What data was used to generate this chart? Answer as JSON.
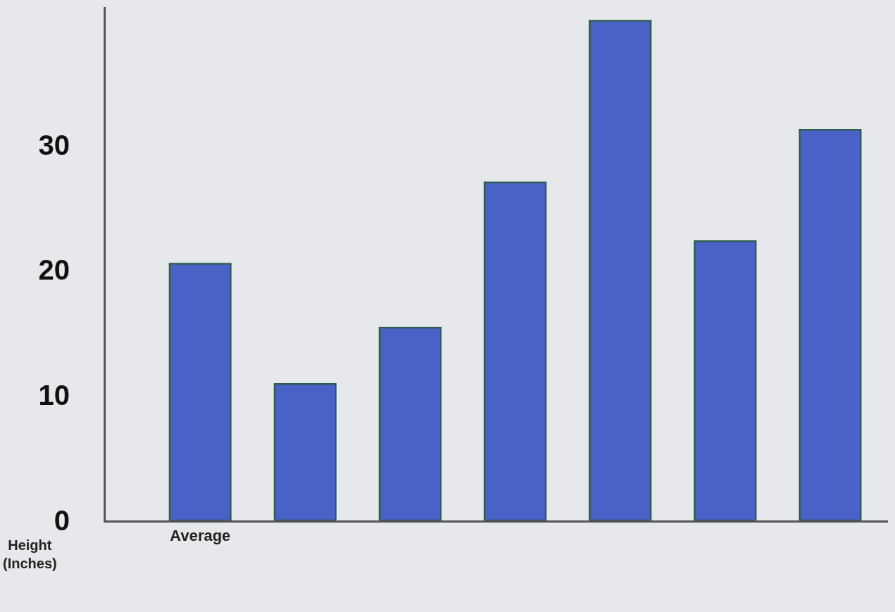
{
  "chart_data": {
    "type": "bar",
    "ylabel": "Height\n(Inches)",
    "categories": [
      "Average",
      null,
      null,
      null,
      null,
      null,
      null
    ],
    "values": [
      20.5,
      10.9,
      15.4,
      27.0,
      39.9,
      22.3,
      31.2
    ],
    "color": "#4a62c8",
    "ylim": [
      0,
      41
    ],
    "yticks": [
      0,
      10,
      20,
      30
    ],
    "grid": false,
    "legend": false
  }
}
